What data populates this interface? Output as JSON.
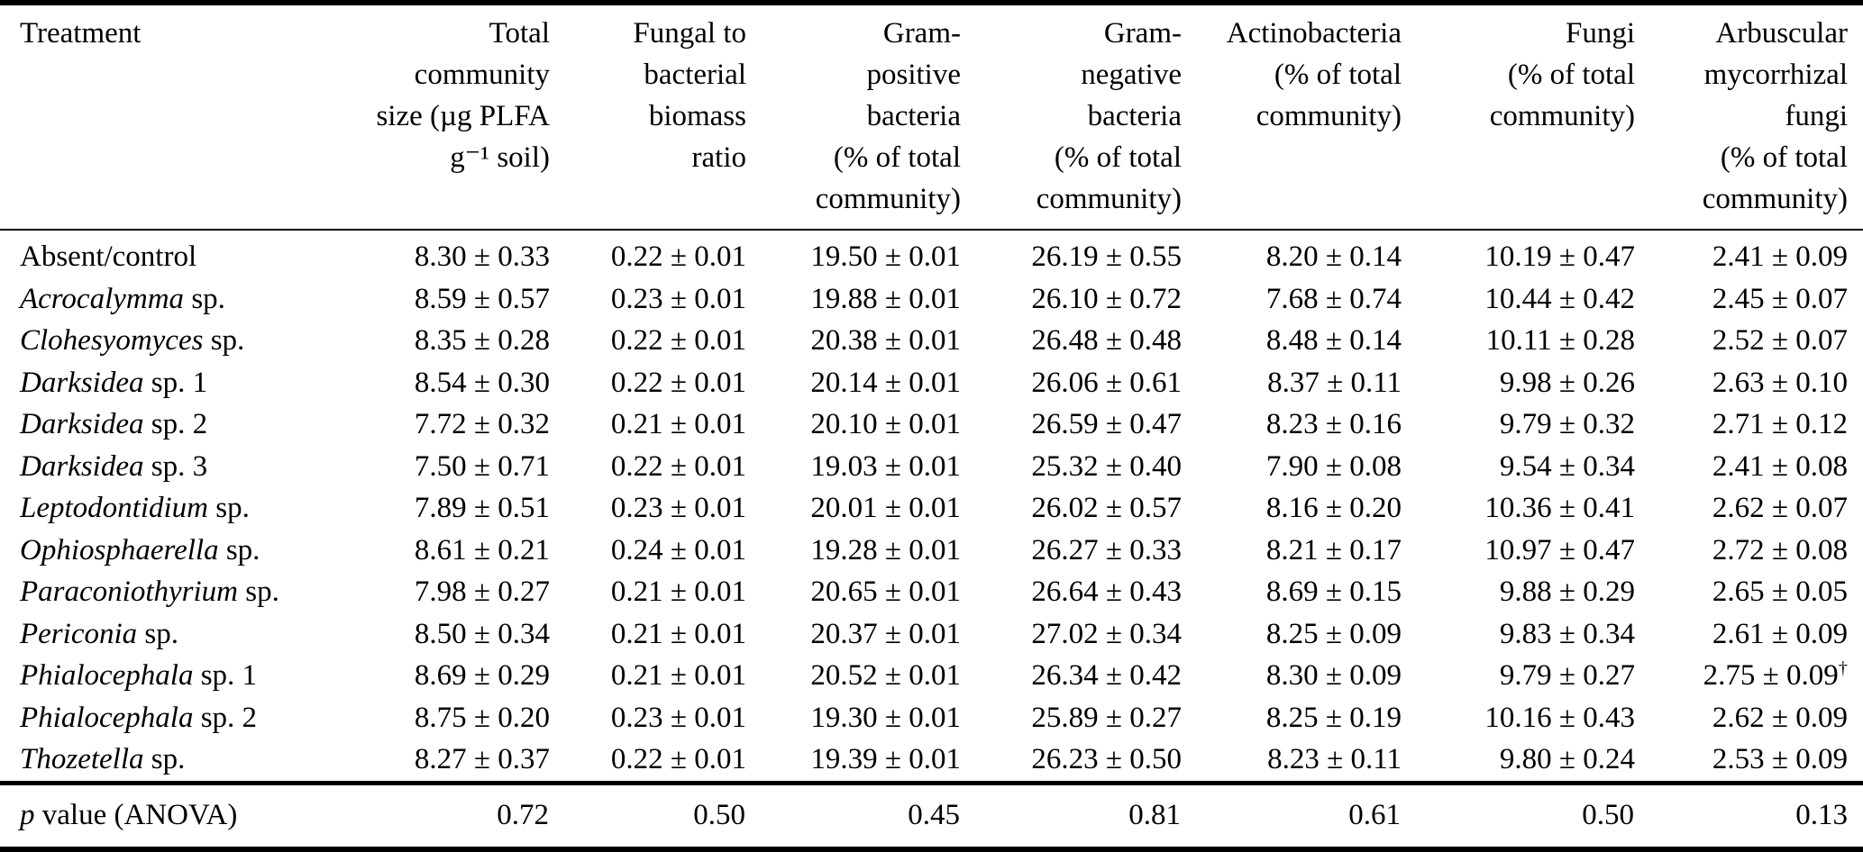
{
  "colors": {
    "text": "#000000",
    "background": "#ffffff",
    "rule": "#000000"
  },
  "table": {
    "columns": [
      {
        "id": "treatment",
        "align": "left",
        "label_lines": [
          "Treatment"
        ]
      },
      {
        "id": "total-community-size",
        "align": "right",
        "label_lines": [
          "Total",
          "community",
          "size (µg PLFA",
          "g⁻¹ soil)"
        ]
      },
      {
        "id": "fungal-to-bacterial-ratio",
        "align": "right",
        "label_lines": [
          "Fungal to",
          "bacterial",
          "biomass",
          "ratio"
        ]
      },
      {
        "id": "gram-positive-bacteria",
        "align": "right",
        "label_lines": [
          "Gram-",
          "positive",
          "bacteria",
          "(% of total",
          "community)"
        ]
      },
      {
        "id": "gram-negative-bacteria",
        "align": "right",
        "label_lines": [
          "Gram-",
          "negative",
          "bacteria",
          "(% of total",
          "community)"
        ]
      },
      {
        "id": "actinobacteria",
        "align": "right",
        "label_lines": [
          "Actinobacteria",
          "(% of total",
          "community)"
        ]
      },
      {
        "id": "fungi",
        "align": "right",
        "label_lines": [
          "Fungi",
          "(% of total",
          "community)"
        ]
      },
      {
        "id": "arbuscular-mycorrhizal-fungi",
        "align": "right",
        "label_lines": [
          "Arbuscular",
          "mycorrhizal",
          "fungi",
          "(% of total",
          "community)"
        ]
      }
    ],
    "rows": [
      {
        "treatment_italic": "",
        "treatment_roman": "Absent/control",
        "values": [
          "8.30 ± 0.33",
          "0.22 ± 0.01",
          "19.50 ± 0.01",
          "26.19 ± 0.55",
          "8.20 ± 0.14",
          "10.19 ± 0.47",
          "2.41 ± 0.09"
        ]
      },
      {
        "treatment_italic": "Acrocalymma",
        "treatment_roman": "sp.",
        "values": [
          "8.59 ± 0.57",
          "0.23 ± 0.01",
          "19.88 ± 0.01",
          "26.10 ± 0.72",
          "7.68 ± 0.74",
          "10.44 ± 0.42",
          "2.45 ± 0.07"
        ]
      },
      {
        "treatment_italic": "Clohesyomyces",
        "treatment_roman": "sp.",
        "values": [
          "8.35 ± 0.28",
          "0.22 ± 0.01",
          "20.38 ± 0.01",
          "26.48 ± 0.48",
          "8.48 ± 0.14",
          "10.11 ± 0.28",
          "2.52 ± 0.07"
        ]
      },
      {
        "treatment_italic": "Darksidea",
        "treatment_roman": "sp. 1",
        "values": [
          "8.54 ± 0.30",
          "0.22 ± 0.01",
          "20.14 ± 0.01",
          "26.06 ± 0.61",
          "8.37 ± 0.11",
          "9.98 ± 0.26",
          "2.63 ± 0.10"
        ]
      },
      {
        "treatment_italic": "Darksidea",
        "treatment_roman": "sp. 2",
        "values": [
          "7.72 ± 0.32",
          "0.21 ± 0.01",
          "20.10 ± 0.01",
          "26.59 ± 0.47",
          "8.23 ± 0.16",
          "9.79 ± 0.32",
          "2.71 ± 0.12"
        ]
      },
      {
        "treatment_italic": "Darksidea",
        "treatment_roman": "sp. 3",
        "values": [
          "7.50 ± 0.71",
          "0.22 ± 0.01",
          "19.03 ± 0.01",
          "25.32 ± 0.40",
          "7.90 ± 0.08",
          "9.54 ± 0.34",
          "2.41 ± 0.08"
        ]
      },
      {
        "treatment_italic": "Leptodontidium",
        "treatment_roman": "sp.",
        "values": [
          "7.89 ± 0.51",
          "0.23 ± 0.01",
          "20.01 ± 0.01",
          "26.02 ± 0.57",
          "8.16 ± 0.20",
          "10.36 ± 0.41",
          "2.62 ± 0.07"
        ]
      },
      {
        "treatment_italic": "Ophiosphaerella",
        "treatment_roman": "sp.",
        "values": [
          "8.61 ± 0.21",
          "0.24 ± 0.01",
          "19.28 ± 0.01",
          "26.27 ± 0.33",
          "8.21 ± 0.17",
          "10.97 ± 0.47",
          "2.72 ± 0.08"
        ]
      },
      {
        "treatment_italic": "Paraconiothyrium",
        "treatment_roman": "sp.",
        "values": [
          "7.98 ± 0.27",
          "0.21 ± 0.01",
          "20.65 ± 0.01",
          "26.64 ± 0.43",
          "8.69 ± 0.15",
          "9.88 ± 0.29",
          "2.65 ± 0.05"
        ]
      },
      {
        "treatment_italic": "Periconia",
        "treatment_roman": "sp.",
        "values": [
          "8.50 ± 0.34",
          "0.21 ± 0.01",
          "20.37 ± 0.01",
          "27.02 ± 0.34",
          "8.25 ± 0.09",
          "9.83 ± 0.34",
          "2.61 ± 0.09"
        ]
      },
      {
        "treatment_italic": "Phialocephala",
        "treatment_roman": "sp. 1",
        "values": [
          "8.69 ± 0.29",
          "0.21 ± 0.01",
          "20.52 ± 0.01",
          "26.34 ± 0.42",
          "8.30 ± 0.09",
          "9.79 ± 0.27",
          "2.75 ± 0.09†"
        ]
      },
      {
        "treatment_italic": "Phialocephala",
        "treatment_roman": "sp. 2",
        "values": [
          "8.75 ± 0.20",
          "0.23 ± 0.01",
          "19.30 ± 0.01",
          "25.89 ± 0.27",
          "8.25 ± 0.19",
          "10.16 ± 0.43",
          "2.62 ± 0.09"
        ]
      },
      {
        "treatment_italic": "Thozetella",
        "treatment_roman": "sp.",
        "values": [
          "8.27 ± 0.37",
          "0.22 ± 0.01",
          "19.39 ± 0.01",
          "26.23 ± 0.50",
          "8.23 ± 0.11",
          "9.80 ± 0.24",
          "2.53 ± 0.09"
        ]
      }
    ],
    "p_row": {
      "label_italic": "p",
      "label_roman": "value (ANOVA)",
      "values": [
        "0.72",
        "0.50",
        "0.45",
        "0.81",
        "0.61",
        "0.50",
        "0.13"
      ]
    }
  }
}
